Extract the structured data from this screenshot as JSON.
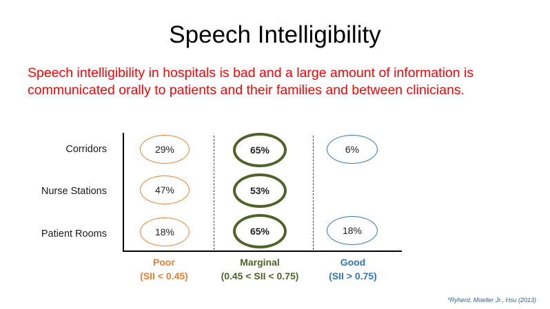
{
  "title": "Speech Intelligibility",
  "intro": {
    "line1": "Speech intelligibility in hospitals is bad and a large amount of information is",
    "line2": "communicated orally to patients and their families and between clinicians."
  },
  "rows": [
    {
      "label": "Corridors",
      "poor": "29%",
      "marginal": "65%",
      "good": "6%"
    },
    {
      "label": "Nurse Stations",
      "poor": "47%",
      "marginal": "53%",
      "good": ""
    },
    {
      "label": "Patient Rooms",
      "poor": "18%",
      "marginal": "65%",
      "good": "18%"
    }
  ],
  "categories": [
    {
      "name": "Poor",
      "range": "(SII < 0.45)",
      "color": "#ed7d31"
    },
    {
      "name": "Marginal",
      "range": "(0.45 < SII < 0.75)",
      "color": "#4f6228"
    },
    {
      "name": "Good",
      "range": "(SII > 0.75)",
      "color": "#2e75b6"
    }
  ],
  "citation": "*Ryherd, Moeller Jr., Hsu (2013)"
}
